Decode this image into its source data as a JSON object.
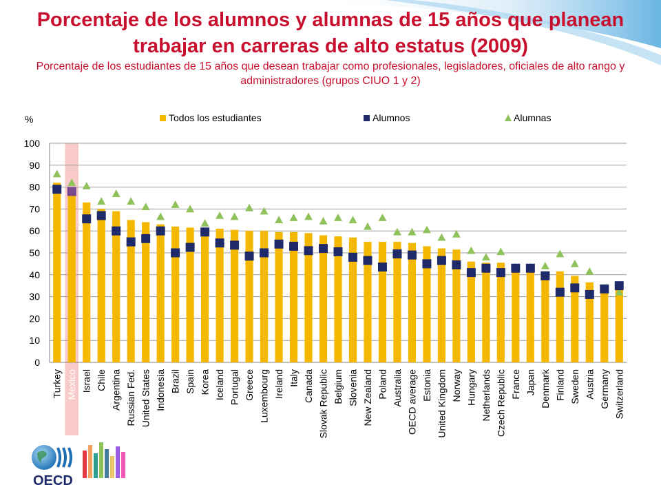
{
  "title": "Porcentaje de los alumnos y alumnas de 15 años que planean trabajar en carreras de alto estatus (2009)",
  "subtitle": "Porcentaje de los estudiantes de 15 años que desean trabajar como profesionales, legisladores, oficiales de alto rango y administradores (grupos CIUO 1 y 2)",
  "logo_text": "OECD",
  "chart_data": {
    "type": "bar",
    "ylabel": "%",
    "ylim": [
      0,
      100
    ],
    "yticks": [
      0,
      10,
      20,
      30,
      40,
      50,
      60,
      70,
      80,
      90,
      100
    ],
    "grid": true,
    "legend_position": "top",
    "highlight_category": "Mexico",
    "categories": [
      "Turkey",
      "Mexico",
      "Israel",
      "Chile",
      "Argentina",
      "Russian Fed.",
      "United States",
      "Indonesia",
      "Brazil",
      "Spain",
      "Korea",
      "Iceland",
      "Portugal",
      "Greece",
      "Luxembourg",
      "Ireland",
      "Italy",
      "Canada",
      "Slovak Republic",
      "Belgium",
      "Slovenia",
      "New Zealand",
      "Poland",
      "Australia",
      "OECD average",
      "Estonia",
      "United Kingdom",
      "Norway",
      "Hungary",
      "Netherlands",
      "Czech Republic",
      "France",
      "Japan",
      "Denmark",
      "Finland",
      "Sweden",
      "Austria",
      "Germany",
      "Switzerland"
    ],
    "series": [
      {
        "name": "Todos los estudiantes",
        "type": "bar",
        "color": "#f5b800",
        "values": [
          82,
          80,
          73,
          70,
          69,
          65,
          64,
          63,
          62,
          61.5,
          61,
          61,
          60.5,
          60,
          60,
          59.5,
          59.5,
          59,
          58,
          57.5,
          57,
          55,
          55,
          55,
          54.5,
          53,
          52,
          51.5,
          46,
          45.5,
          45.5,
          43,
          42,
          41,
          41.5,
          39.5,
          36.5,
          34,
          33
        ]
      },
      {
        "name": "Alumnos",
        "type": "square",
        "color": "#1f2a6b",
        "values": [
          79,
          78,
          65.5,
          67,
          60,
          55,
          56.5,
          60,
          50,
          52.5,
          59.5,
          54.5,
          53.5,
          48.5,
          50,
          54,
          53,
          51,
          52,
          50.5,
          48,
          46.5,
          43.5,
          49.5,
          49,
          45,
          46.5,
          44.5,
          41,
          43,
          41,
          43,
          43,
          39.5,
          32,
          34,
          31,
          33.5,
          35
        ]
      },
      {
        "name": "Alumnas",
        "type": "triangle",
        "color": "#8fc25a",
        "values": [
          86,
          82,
          80.5,
          73.5,
          77,
          73.5,
          71,
          66.5,
          72,
          70,
          63.5,
          67,
          66.5,
          70.5,
          69,
          65,
          66,
          66.5,
          64.5,
          66,
          65,
          62,
          66,
          59.5,
          59.5,
          60.5,
          57,
          58.5,
          51,
          48,
          50.5,
          43.5,
          43.5,
          44,
          49.5,
          45,
          41.5,
          34,
          32
        ]
      }
    ]
  }
}
